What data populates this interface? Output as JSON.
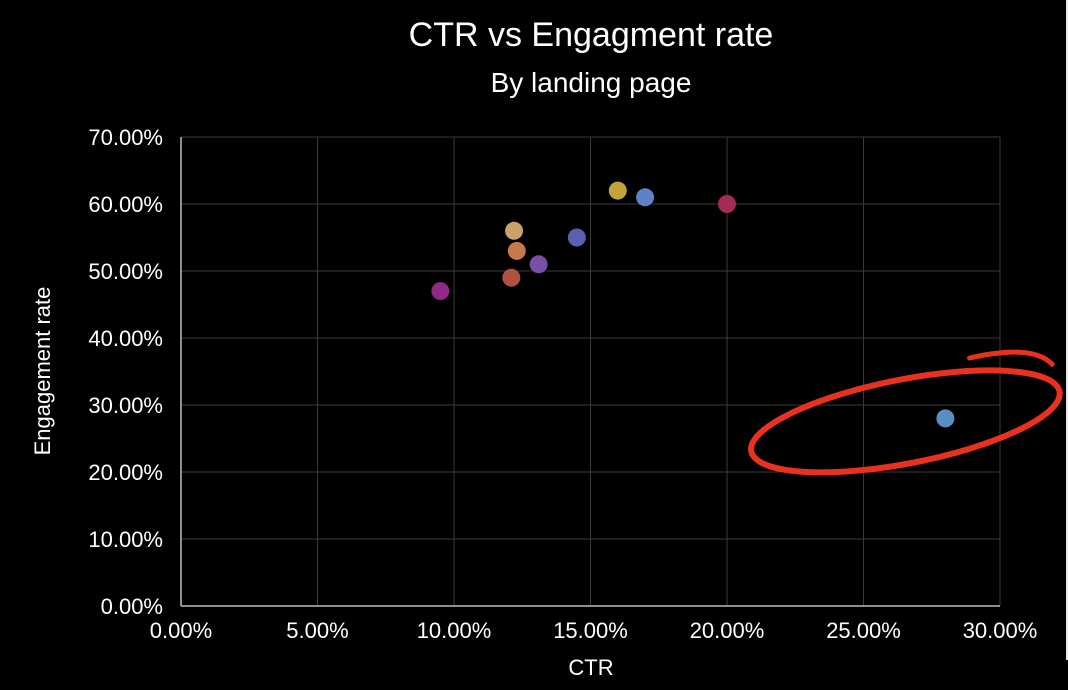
{
  "chart_data": {
    "type": "scatter",
    "title": "CTR vs Engagment rate",
    "subtitle": "By landing page",
    "xlabel": "CTR",
    "ylabel": "Engagement rate",
    "xlim": [
      0,
      0.3
    ],
    "ylim": [
      0,
      0.7
    ],
    "x_ticks": [
      0,
      0.05,
      0.1,
      0.15,
      0.2,
      0.25,
      0.3
    ],
    "y_ticks": [
      0,
      0.1,
      0.2,
      0.3,
      0.4,
      0.5,
      0.6,
      0.7
    ],
    "x_tick_labels": [
      "0.00%",
      "5.00%",
      "10.00%",
      "15.00%",
      "20.00%",
      "25.00%",
      "30.00%"
    ],
    "y_tick_labels": [
      "0.00%",
      "10.00%",
      "20.00%",
      "30.00%",
      "40.00%",
      "50.00%",
      "60.00%",
      "70.00%"
    ],
    "grid": true,
    "points": [
      {
        "x": 0.095,
        "y": 0.47,
        "color": "#8e2a86"
      },
      {
        "x": 0.121,
        "y": 0.49,
        "color": "#b0523f"
      },
      {
        "x": 0.122,
        "y": 0.56,
        "color": "#c8a26a"
      },
      {
        "x": 0.123,
        "y": 0.53,
        "color": "#c47a4c"
      },
      {
        "x": 0.131,
        "y": 0.51,
        "color": "#7b4fa8"
      },
      {
        "x": 0.145,
        "y": 0.55,
        "color": "#5c5fb0"
      },
      {
        "x": 0.16,
        "y": 0.62,
        "color": "#c2a43a"
      },
      {
        "x": 0.17,
        "y": 0.61,
        "color": "#5d82c6"
      },
      {
        "x": 0.2,
        "y": 0.6,
        "color": "#a32b55"
      },
      {
        "x": 0.28,
        "y": 0.28,
        "color": "#5b8ec0"
      }
    ],
    "highlight": {
      "shape": "ellipse",
      "color": "#e8321e",
      "target_x": 0.28,
      "target_y": 0.28
    }
  }
}
